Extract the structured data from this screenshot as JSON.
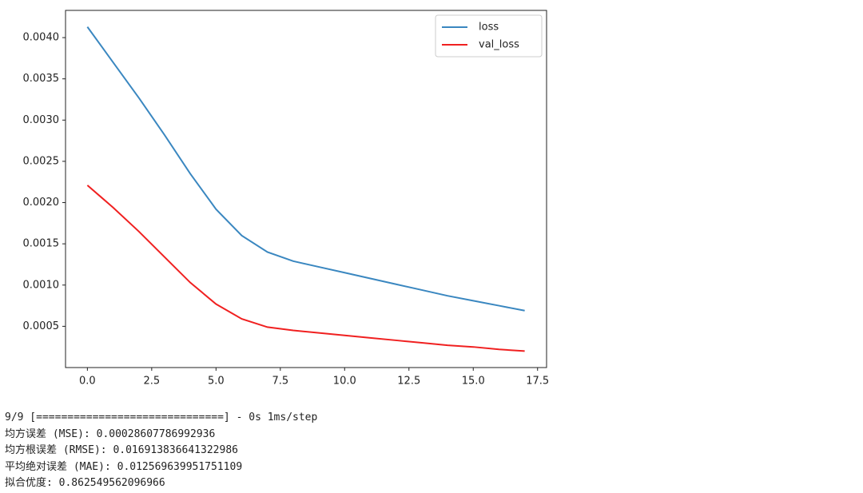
{
  "chart_data": {
    "type": "line",
    "x": [
      0,
      1,
      2,
      3,
      4,
      5,
      6,
      7,
      8,
      9,
      10,
      11,
      12,
      13,
      14,
      15,
      16,
      17
    ],
    "series": [
      {
        "name": "loss",
        "color": "#3a87c0",
        "values": [
          0.00413,
          0.0037,
          0.00327,
          0.00282,
          0.00235,
          0.00192,
          0.0016,
          0.0014,
          0.00129,
          0.00122,
          0.00115,
          0.00108,
          0.00101,
          0.00094,
          0.00087,
          0.00081,
          0.00075,
          0.00069
        ]
      },
      {
        "name": "val_loss",
        "color": "#f02020",
        "values": [
          0.00221,
          0.00194,
          0.00165,
          0.00134,
          0.00103,
          0.00077,
          0.00059,
          0.00049,
          0.00045,
          0.00042,
          0.00039,
          0.00036,
          0.00033,
          0.0003,
          0.00027,
          0.00025,
          0.00022,
          0.0002
        ]
      }
    ],
    "xlim": [
      -0.85,
      17.85
    ],
    "xticks": [
      {
        "value": 0,
        "label": "0.0"
      },
      2.5,
      {
        "value": 5,
        "label": "5.0"
      },
      7.5,
      {
        "value": 10,
        "label": "10.0"
      },
      12.5,
      {
        "value": 15,
        "label": "15.0"
      },
      17.5
    ],
    "ylim": [
      0,
      0.00433
    ],
    "yticks": [
      0.0005,
      {
        "value": 0.001,
        "label": "0.0010"
      },
      0.0015,
      {
        "value": 0.002,
        "label": "0.0020"
      },
      0.0025,
      {
        "value": 0.003,
        "label": "0.0030"
      },
      0.0035,
      {
        "value": 0.004,
        "label": "0.0040"
      }
    ],
    "legend": "upper right"
  },
  "console_output": [
    "9/9 [==============================] - 0s 1ms/step",
    "均方误差 (MSE): 0.00028607786992936",
    "均方根误差 (RMSE): 0.016913836641322986",
    "平均绝对误差 (MAE): 0.012569639951751109",
    "拟合优度: 0.862549562096966"
  ]
}
